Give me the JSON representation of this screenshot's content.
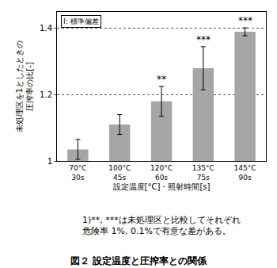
{
  "chart_data": {
    "type": "bar",
    "title": "図２ 設定温度と圧搾率との関係",
    "x_label": "設定温度[°C]・照射時間[s]",
    "y_label": "未処理区を1としたときの\n圧搾率の比[-]",
    "categories": [
      "70°C\n30s",
      "100°C\n45s",
      "120°C\n60s",
      "135°C\n75s",
      "145°C\n90s"
    ],
    "values": [
      1.035,
      1.11,
      1.18,
      1.28,
      1.39
    ],
    "errors": [
      0.03,
      0.03,
      0.045,
      0.065,
      0.012
    ],
    "color": "#a6a6a6",
    "ylim": [
      1,
      1.45
    ],
    "yticks": [
      1,
      1.2,
      1.4
    ],
    "grid": true,
    "annotations": [
      {
        "category": "120°C\n60s",
        "text": "**"
      },
      {
        "category": "135°C\n75s",
        "text": "***"
      },
      {
        "category": "145°C\n90s",
        "text": "***"
      },
      {
        "text": "I: 標準偏差"
      }
    ],
    "caption": "1)**, ***は未処理区と比較してそれぞれ\n危険率 1%, 0.1%で有意な差がある。"
  }
}
